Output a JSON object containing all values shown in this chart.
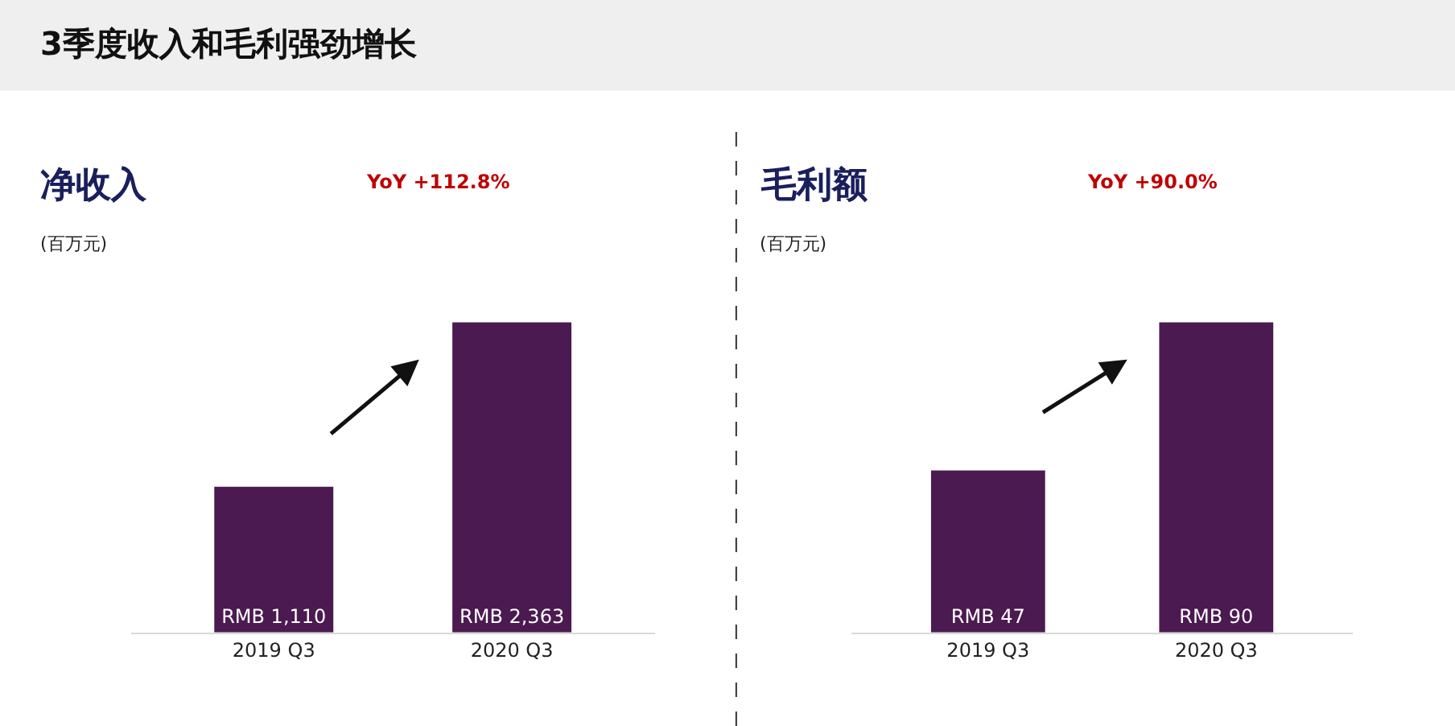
{
  "chart_data": [
    {
      "type": "other",
      "title": "3季度收入和毛利强劲增长"
    },
    {
      "type": "bar",
      "title": "净收入",
      "subtitle": "(百万元)",
      "annotations": [
        "YoY +112.8%"
      ],
      "categories": [
        "2019 Q3",
        "2020 Q3"
      ],
      "values": [
        1110,
        2363
      ],
      "color": "#4b1a50",
      "value_labels": [
        "RMB 1,110",
        "RMB 2,363"
      ],
      "tick_labels": "x"
    },
    {
      "type": "bar",
      "title": "毛利额",
      "subtitle": "(百万元)",
      "annotations": [
        "YoY +90.0%"
      ],
      "categories": [
        "2019 Q3",
        "2020 Q3"
      ],
      "values": [
        47,
        90
      ],
      "color": "#4b1a50",
      "value_labels": [
        "RMB 47",
        "RMB 90"
      ],
      "tick_labels": "x"
    }
  ]
}
